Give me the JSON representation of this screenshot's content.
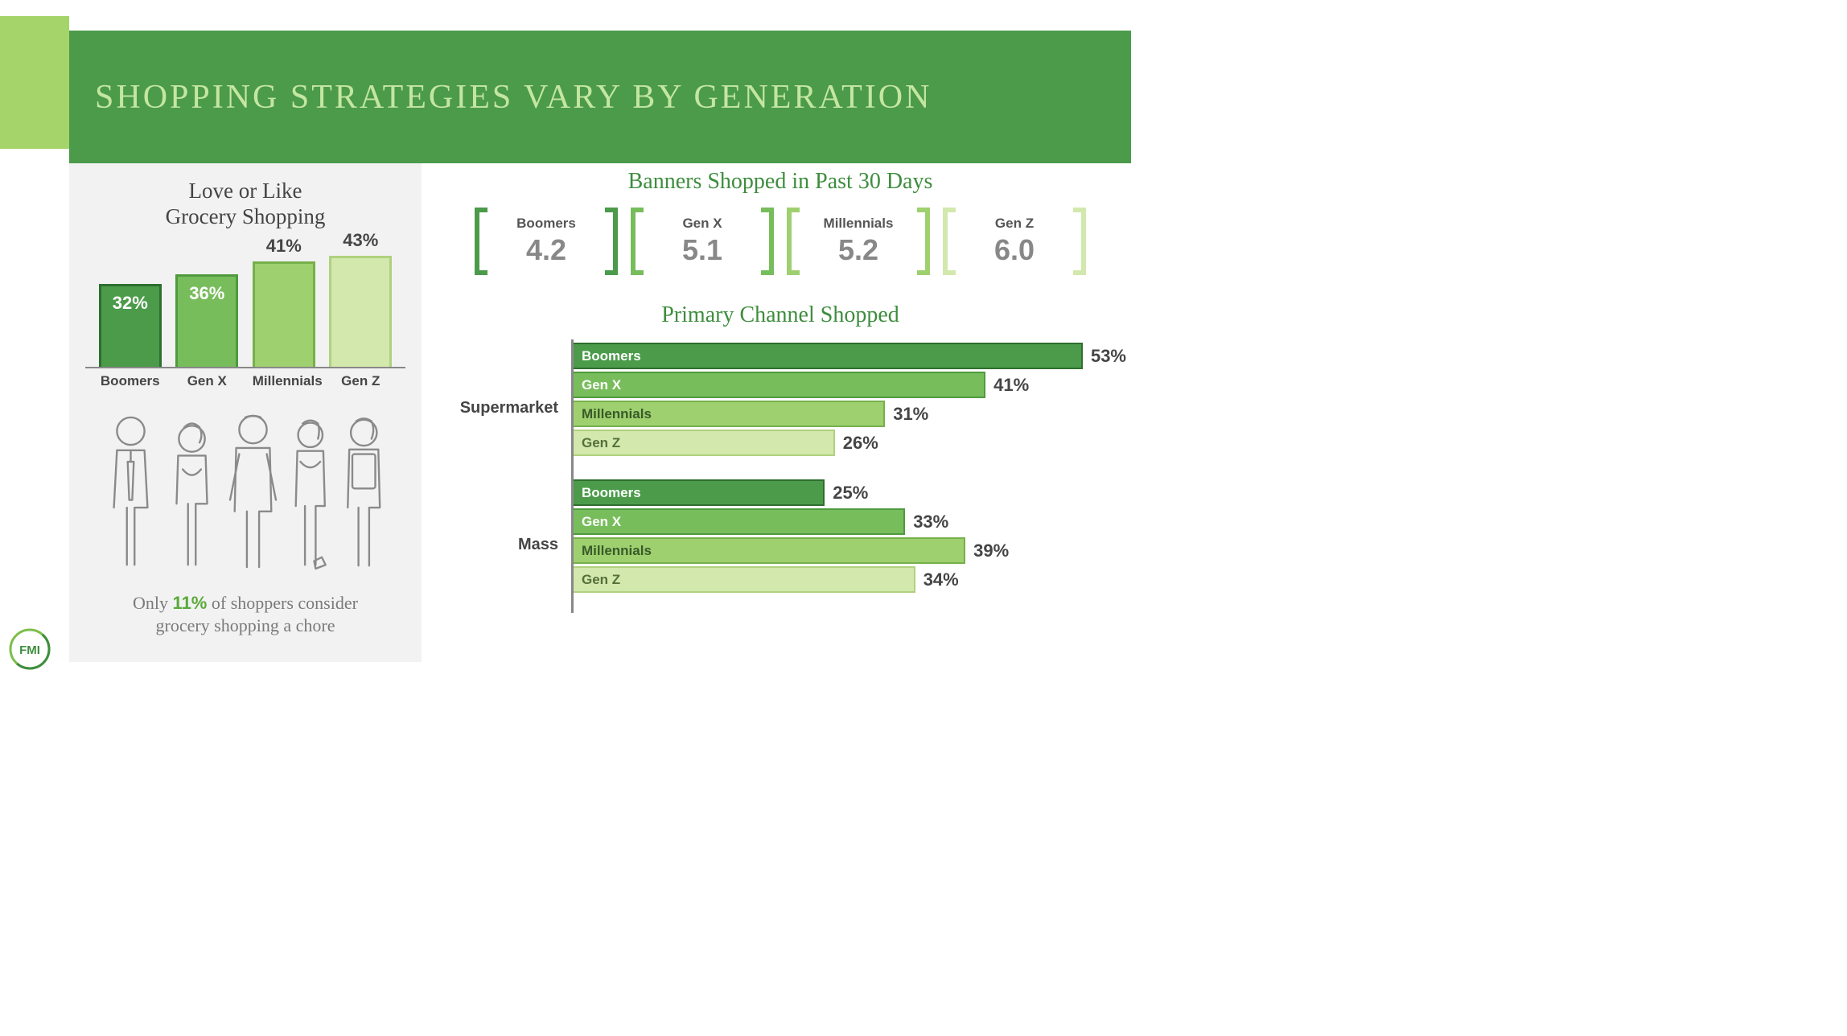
{
  "colors": {
    "boomers": {
      "fill": "#4b9b4b",
      "border": "#2f6e2f",
      "text": "#ffffff"
    },
    "genx": {
      "fill": "#78bd5c",
      "border": "#4f9a3e",
      "text": "#ffffff"
    },
    "millennials": {
      "fill": "#9ed06f",
      "border": "#76b04b",
      "text": "#3a5a2a"
    },
    "genz": {
      "fill": "#d2e8ad",
      "border": "#b0d17e",
      "text": "#55703a"
    }
  },
  "header": {
    "title": "SHOPPING STRATEGIES VARY BY GENERATION"
  },
  "left": {
    "title_l1": "Love or Like",
    "title_l2": "Grocery Shopping",
    "bars": {
      "type": "bar",
      "ymax": 50,
      "categories": [
        "Boomers",
        "Gen X",
        "Millennials",
        "Gen Z"
      ],
      "items": [
        {
          "key": "boomers",
          "value": 32,
          "label": "32%",
          "label_inside": true
        },
        {
          "key": "genx",
          "value": 36,
          "label": "36%",
          "label_inside": true
        },
        {
          "key": "millennials",
          "value": 41,
          "label": "41%",
          "label_inside": false
        },
        {
          "key": "genz",
          "value": 43,
          "label": "43%",
          "label_inside": false
        }
      ]
    },
    "chore": {
      "prefix": "Only ",
      "pct": "11%",
      "mid": " of shoppers consider",
      "line2": "grocery shopping a chore"
    }
  },
  "banners": {
    "title": "Banners Shopped in Past 30 Days",
    "items": [
      {
        "key": "boomers",
        "label": "Boomers",
        "value": "4.2"
      },
      {
        "key": "genx",
        "label": "Gen X",
        "value": "5.1"
      },
      {
        "key": "millennials",
        "label": "Millennials",
        "value": "5.2"
      },
      {
        "key": "genz",
        "label": "Gen Z",
        "value": "6.0"
      }
    ]
  },
  "channel": {
    "title": "Primary Channel Shopped",
    "xmax": 55,
    "groups": [
      {
        "label": "Supermarket",
        "rows": [
          {
            "key": "boomers",
            "label": "Boomers",
            "value": 53,
            "vlabel": "53%"
          },
          {
            "key": "genx",
            "label": "Gen X",
            "value": 41,
            "vlabel": "41%"
          },
          {
            "key": "millennials",
            "label": "Millennials",
            "value": 31,
            "vlabel": "31%"
          },
          {
            "key": "genz",
            "label": "Gen Z",
            "value": 26,
            "vlabel": "26%"
          }
        ]
      },
      {
        "label": "Mass",
        "rows": [
          {
            "key": "boomers",
            "label": "Boomers",
            "value": 25,
            "vlabel": "25%"
          },
          {
            "key": "genx",
            "label": "Gen X",
            "value": 33,
            "vlabel": "33%"
          },
          {
            "key": "millennials",
            "label": "Millennials",
            "value": 39,
            "vlabel": "39%"
          },
          {
            "key": "genz",
            "label": "Gen Z",
            "value": 34,
            "vlabel": "34%"
          }
        ]
      }
    ]
  },
  "logo": {
    "text": "FMI"
  }
}
